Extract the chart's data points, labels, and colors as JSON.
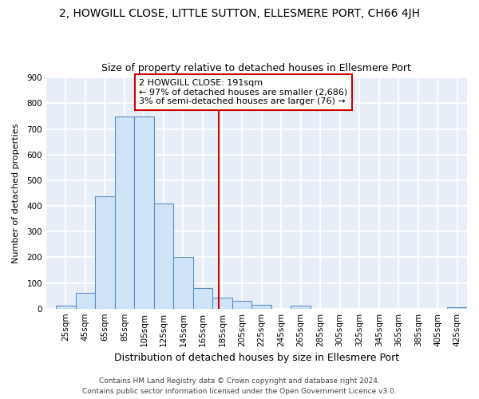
{
  "title": "2, HOWGILL CLOSE, LITTLE SUTTON, ELLESMERE PORT, CH66 4JH",
  "subtitle": "Size of property relative to detached houses in Ellesmere Port",
  "xlabel": "Distribution of detached houses by size in Ellesmere Port",
  "ylabel": "Number of detached properties",
  "bin_starts": [
    25,
    45,
    65,
    85,
    105,
    125,
    145,
    165,
    185,
    205,
    225,
    245,
    265,
    285,
    305,
    325,
    345,
    365,
    385,
    405,
    425
  ],
  "bin_values": [
    10,
    60,
    438,
    750,
    750,
    410,
    200,
    80,
    42,
    30,
    15,
    0,
    10,
    0,
    0,
    0,
    0,
    0,
    0,
    0,
    5
  ],
  "bar_color": "#d0e4f7",
  "bar_edge_color": "#5b8ec4",
  "vline_x": 191,
  "vline_color": "#cc0000",
  "annotation_title": "2 HOWGILL CLOSE: 191sqm",
  "annotation_line1": "← 97% of detached houses are smaller (2,686)",
  "annotation_line2": "3% of semi-detached houses are larger (76) →",
  "annotation_box_edge": "#cc0000",
  "ylim": [
    0,
    900
  ],
  "yticks": [
    0,
    100,
    200,
    300,
    400,
    500,
    600,
    700,
    800,
    900
  ],
  "bin_width": 20,
  "footer": "Contains HM Land Registry data © Crown copyright and database right 2024.\nContains public sector information licensed under the Open Government Licence v3.0.",
  "fig_bg": "#ffffff",
  "plot_bg": "#e8eef8",
  "grid_color": "#ffffff",
  "title_fontsize": 10,
  "subtitle_fontsize": 9,
  "xlabel_fontsize": 9,
  "ylabel_fontsize": 8,
  "tick_fontsize": 7.5,
  "footer_fontsize": 6.5
}
